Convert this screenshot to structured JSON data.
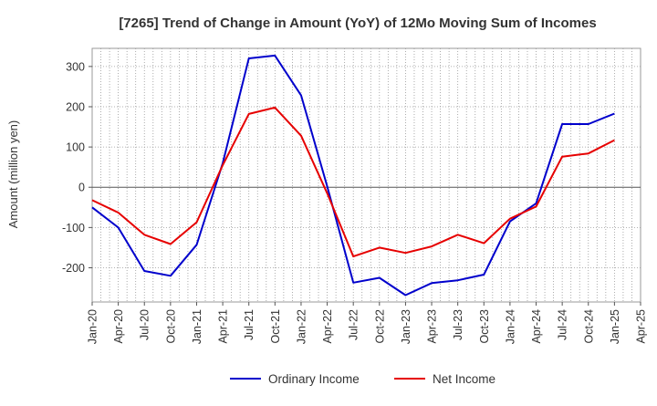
{
  "chart_data": {
    "type": "line",
    "title": "[7265]  Trend of Change in Amount (YoY) of 12Mo Moving Sum of Incomes",
    "ylabel": "Amount (million yen)",
    "xlabel": "",
    "ylim": [
      -285,
      345
    ],
    "yticks": [
      -200,
      -100,
      0,
      100,
      200,
      300
    ],
    "grid": true,
    "legend_position": "bottom-center",
    "x_tick_labels": [
      "Jan-20",
      "Apr-20",
      "Jul-20",
      "Oct-20",
      "Jan-21",
      "Apr-21",
      "Jul-21",
      "Oct-21",
      "Jan-22",
      "Apr-22",
      "Jul-22",
      "Oct-22",
      "Jan-23",
      "Apr-23",
      "Jul-23",
      "Oct-23",
      "Jan-24",
      "Apr-24",
      "Jul-24",
      "Oct-24",
      "Jan-25",
      "Apr-25"
    ],
    "series": [
      {
        "name": "Ordinary Income",
        "color": "#0000cc",
        "values": [
          -50,
          -100,
          -208,
          -220,
          -143,
          60,
          320,
          327,
          228,
          2,
          -237,
          -225,
          -268,
          -238,
          -231,
          -217,
          -85,
          -40,
          157,
          157,
          183
        ]
      },
      {
        "name": "Net Income",
        "color": "#e60000",
        "values": [
          -32,
          -63,
          -118,
          -141,
          -87,
          55,
          182,
          198,
          128,
          -15,
          -172,
          -150,
          -163,
          -147,
          -118,
          -139,
          -78,
          -48,
          76,
          84,
          117
        ]
      }
    ]
  }
}
